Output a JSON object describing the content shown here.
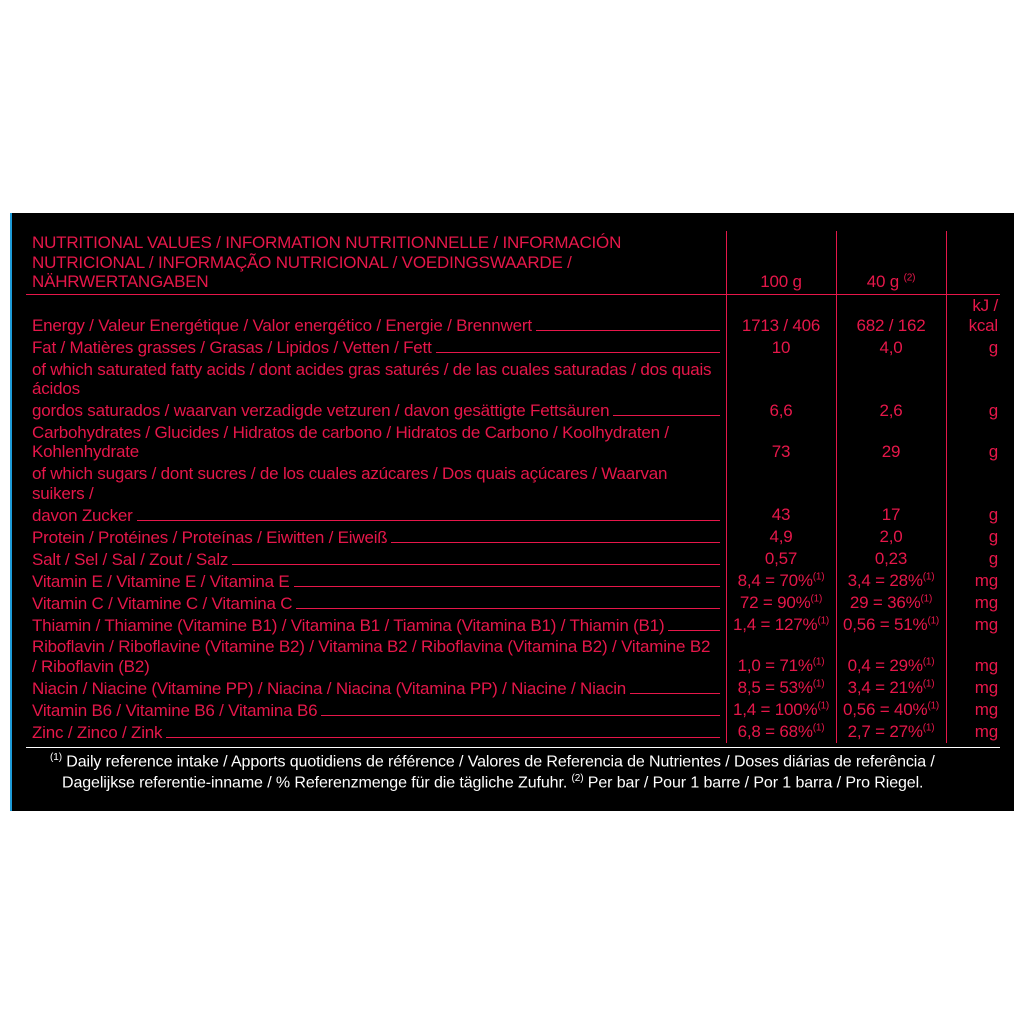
{
  "colors": {
    "background_outer": "#ffffff",
    "panel_bg": "#000000",
    "accent": "#e6174a",
    "accent_left_bar": "#1e9bd8",
    "footnote_text": "#ffffff"
  },
  "typography": {
    "family": "Arial Narrow / condensed sans",
    "row_fontsize_pt": 13,
    "footnote_fontsize_pt": 12
  },
  "header": {
    "title": "NUTRITIONAL VALUES / INFORMATION NUTRITIONNELLE / INFORMACIÓN NUTRICIONAL / INFORMAÇÃO NUTRICIONAL / VOEDINGSWAARDE / NÄHRWERTANGABEN",
    "col_100g": "100 g",
    "col_40g": "40 g",
    "col_40g_sup": "(2)",
    "col_unit": ""
  },
  "rows": [
    {
      "label": "Energy / Valeur Energétique / Valor energético / Energie / Brennwert",
      "v100": "1713 / 406",
      "v40": "682 / 162",
      "unit": "kJ / kcal"
    },
    {
      "label": "Fat / Matières grasses / Grasas / Lipidos / Vetten / Fett",
      "v100": "10",
      "v40": "4,0",
      "unit": "g"
    },
    {
      "pre": "of which saturated fatty acids / dont acides gras saturés / de las cuales saturadas / dos quais ácidos",
      "label": "gordos saturados / waarvan verzadigde vetzuren / davon gesättigte Fettsäuren",
      "v100": "6,6",
      "v40": "2,6",
      "unit": "g"
    },
    {
      "label": "Carbohydrates / Glucides / Hidratos de carbono / Hidratos de Carbono / Koolhydraten / Kohlenhydrate",
      "v100": "73",
      "v40": "29",
      "unit": "g"
    },
    {
      "pre": "of which sugars / dont sucres / de los cuales azúcares / Dos quais açúcares / Waarvan suikers /",
      "label": "davon Zucker",
      "v100": "43",
      "v40": "17",
      "unit": "g"
    },
    {
      "label": "Protein / Protéines / Proteínas  / Eiwitten / Eiweiß",
      "v100": "4,9",
      "v40": "2,0",
      "unit": "g"
    },
    {
      "label": "Salt / Sel / Sal / Zout / Salz",
      "v100": "0,57",
      "v40": "0,23",
      "unit": "g"
    },
    {
      "label": "Vitamin E / Vitamine E / Vitamina E",
      "v100": "8,4 = 70%",
      "s100": "(1)",
      "v40": "3,4 = 28%",
      "s40": "(1)",
      "unit": "mg"
    },
    {
      "label": "Vitamin C / Vitamine C / Vitamina C",
      "v100": "72 = 90%",
      "s100": "(1)",
      "v40": "29 = 36%",
      "s40": "(1)",
      "unit": "mg"
    },
    {
      "label": "Thiamin / Thiamine (Vitamine B1) / Vitamina B1 / Tiamina (Vitamina B1) / Thiamin (B1)",
      "v100": "1,4 = 127%",
      "s100": "(1)",
      "v40": "0,56 = 51%",
      "s40": "(1)",
      "unit": "mg"
    },
    {
      "label": "Riboflavin / Riboflavine (Vitamine B2) / Vitamina B2 / Riboflavina (Vitamina B2) / Vitamine B2 / Riboflavin (B2)",
      "v100": "1,0 = 71%",
      "s100": "(1)",
      "v40": "0,4 = 29%",
      "s40": "(1)",
      "unit": "mg"
    },
    {
      "label": "Niacin / Niacine (Vitamine PP) / Niacina / Niacina (Vitamina PP) / Niacine / Niacin",
      "v100": "8,5 = 53%",
      "s100": "(1)",
      "v40": "3,4 = 21%",
      "s40": "(1)",
      "unit": "mg"
    },
    {
      "label": "Vitamin B6 / Vitamine B6 / Vitamina B6",
      "v100": "1,4 = 100%",
      "s100": "(1)",
      "v40": "0,56 = 40%",
      "s40": "(1)",
      "unit": "mg"
    },
    {
      "label": "Zinc / Zinco / Zink",
      "v100": "6,8 = 68%",
      "s100": "(1)",
      "v40": "2,7 = 27%",
      "s40": "(1)",
      "unit": "mg"
    }
  ],
  "footnote": {
    "sup1": "(1)",
    "text1": " Daily reference intake / Apports quotidiens de référence / Valores de Referencia de Nutrientes / Doses diárias de referência / Dagelijkse referentie-inname / % Referenzmenge für die tägliche Zufuhr. ",
    "sup2": "(2)",
    "text2": " Per bar / Pour 1 barre / Por 1 barra / Pro Riegel."
  }
}
